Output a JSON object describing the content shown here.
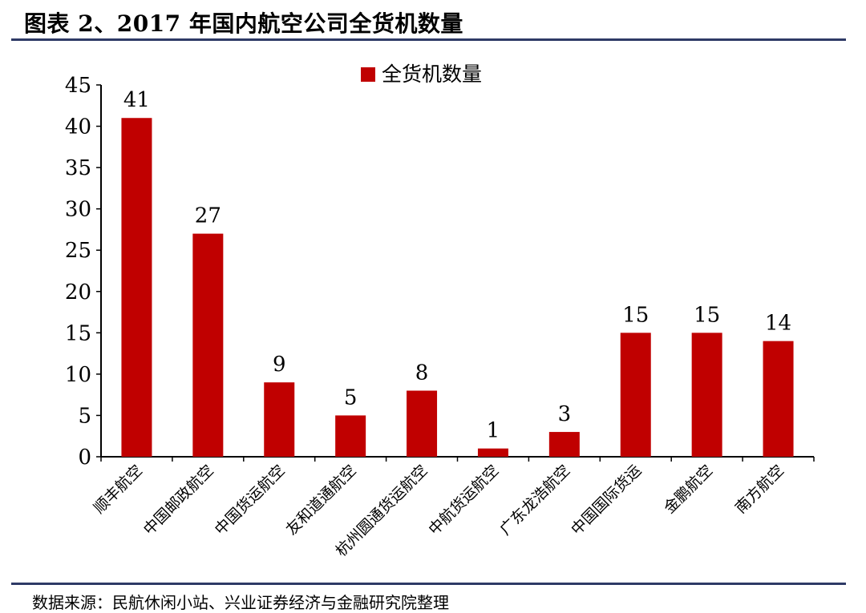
{
  "figure_title": "图表 2、2017 年国内航空公司全货机数量",
  "source_note": "数据来源：民航休闲小站、兴业证券经济与金融研究院整理",
  "chart_data": {
    "type": "bar",
    "categories": [
      "顺丰航空",
      "中国邮政航空",
      "中国货运航空",
      "友和道通航空",
      "杭州圆通货运航空",
      "中航货运航空",
      "广东龙浩航空",
      "中国国际货运",
      "金鹏航空",
      "南方航空"
    ],
    "series": [
      {
        "name": "全货机数量",
        "values": [
          41,
          27,
          9,
          5,
          8,
          1,
          3,
          15,
          15,
          14
        ],
        "color": "#c00000"
      }
    ],
    "data_labels": [
      "41",
      "27",
      "9",
      "5",
      "8",
      "1",
      "3",
      "15",
      "15",
      "14"
    ],
    "yticks": [
      "0",
      "5",
      "10",
      "15",
      "20",
      "25",
      "30",
      "35",
      "40",
      "45"
    ],
    "ylim": [
      0,
      45
    ],
    "grid": false,
    "legend_position": "top-center"
  }
}
